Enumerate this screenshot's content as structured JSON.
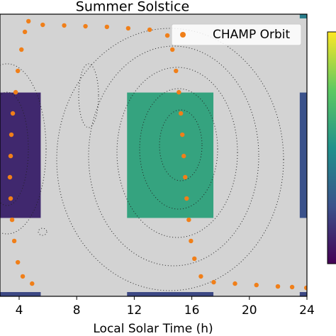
{
  "chart_data": {
    "type": "heatmap",
    "title": "Summer Solstice",
    "x_label": "Local Solar Time (h)",
    "xlim": [
      2.67,
      24
    ],
    "xticks": [
      4,
      8,
      12,
      16,
      20,
      24
    ],
    "ylim": [
      -90,
      90
    ],
    "colormap": "viridis",
    "clim": [
      0,
      1
    ],
    "cells": [
      {
        "x0": 2.67,
        "x1": 5.5,
        "y0": -40,
        "y1": 40,
        "value": 0.12
      },
      {
        "x0": 11.5,
        "x1": 17.5,
        "y0": -40,
        "y1": 40,
        "value": 0.58
      },
      {
        "x0": 23.5,
        "x1": 24,
        "y0": -40,
        "y1": 40,
        "value": 0.25
      },
      {
        "x0": 23.5,
        "x1": 24,
        "y0": 87.3,
        "y1": 90,
        "value": 0.42
      },
      {
        "x0": 2.67,
        "x1": 5.5,
        "y0": -90,
        "y1": -87.3,
        "value": 0.22
      },
      {
        "x0": 11.5,
        "x1": 17.5,
        "y0": -90,
        "y1": -87.3,
        "value": 0.22
      },
      {
        "x0": 23.5,
        "x1": 24,
        "y0": -90,
        "y1": -87.3,
        "value": 0.22
      }
    ],
    "legend": "upper right",
    "series": [
      {
        "name": "CHAMP Orbit",
        "color": "#f07f19",
        "x": [
          4.65,
          4.4,
          4.16,
          3.91,
          3.76,
          3.56,
          3.46,
          3.41,
          3.36,
          3.41,
          3.51,
          3.66,
          3.91,
          4.25,
          4.9,
          5.64,
          7.13,
          8.61,
          10.1,
          11.58,
          13.07,
          14.3,
          14.65,
          14.9,
          15.1,
          15.24,
          15.34,
          15.44,
          15.54,
          15.64,
          15.79,
          15.94,
          16.18,
          16.63,
          17.52,
          19.0,
          20.49,
          21.98,
          22.97,
          23.96
        ],
        "y": [
          85.5,
          78.7,
          67.4,
          53.8,
          40.2,
          26.7,
          13.1,
          -0.5,
          -14.0,
          -27.6,
          -41.2,
          -54.7,
          -68.3,
          -77.3,
          -81.9,
          83.2,
          82.8,
          82.3,
          81.9,
          81.0,
          80.1,
          76.4,
          67.4,
          53.8,
          40.2,
          26.7,
          13.1,
          -0.5,
          -14.0,
          -27.6,
          -41.2,
          -54.7,
          -66.0,
          -77.3,
          -81.0,
          -81.9,
          -82.8,
          -83.7,
          -84.1,
          -84.6
        ]
      }
    ]
  }
}
